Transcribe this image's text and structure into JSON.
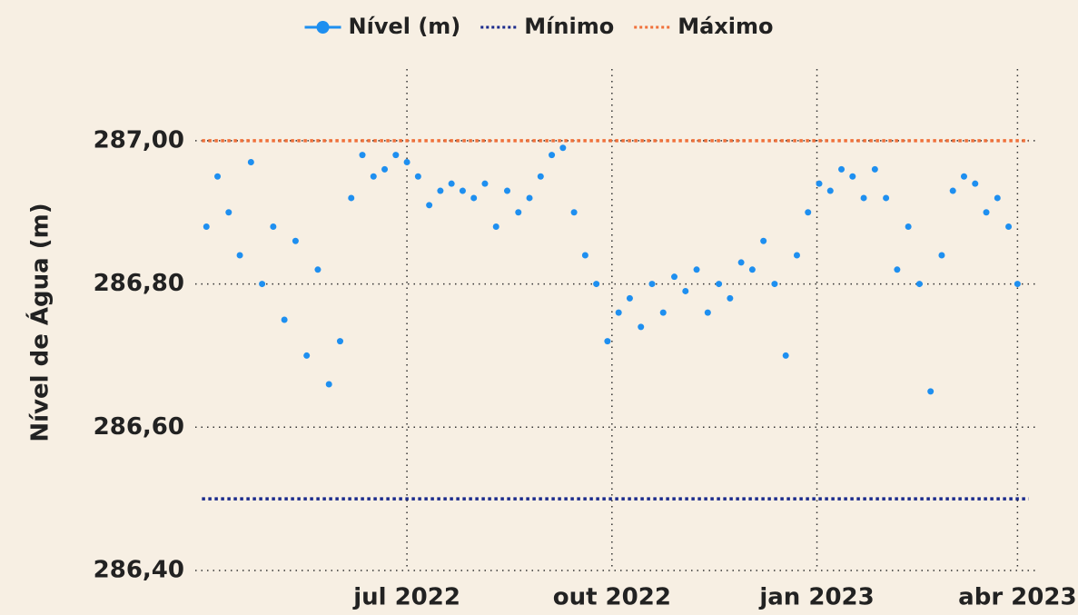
{
  "chart_data": {
    "type": "scatter",
    "y_label": "Nível de Água (m)",
    "xlim": [
      "2022-03-28",
      "2023-04-09"
    ],
    "xticks": [
      {
        "value": "2022-07-01",
        "label": "jul 2022"
      },
      {
        "value": "2022-10-01",
        "label": "out 2022"
      },
      {
        "value": "2023-01-01",
        "label": "jan 2023"
      },
      {
        "value": "2023-04-01",
        "label": "abr 2023"
      }
    ],
    "ylim": [
      286.4,
      287.1
    ],
    "yticks": [
      {
        "value": 286.4,
        "label": "286,40"
      },
      {
        "value": 286.6,
        "label": "286,60"
      },
      {
        "value": 286.8,
        "label": "286,80"
      },
      {
        "value": 287,
        "label": "287,00"
      }
    ],
    "grid": true,
    "legend": "top",
    "series": [
      {
        "name": "Nível (m)",
        "color": "#1e8ff0",
        "x": [
          "2022-04-02",
          "2022-04-07",
          "2022-04-12",
          "2022-04-17",
          "2022-04-22",
          "2022-04-27",
          "2022-05-02",
          "2022-05-07",
          "2022-05-12",
          "2022-05-17",
          "2022-05-22",
          "2022-05-27",
          "2022-06-01",
          "2022-06-06",
          "2022-06-11",
          "2022-06-16",
          "2022-06-21",
          "2022-06-26",
          "2022-07-01",
          "2022-07-06",
          "2022-07-11",
          "2022-07-16",
          "2022-07-21",
          "2022-07-26",
          "2022-07-31",
          "2022-08-05",
          "2022-08-10",
          "2022-08-15",
          "2022-08-20",
          "2022-08-25",
          "2022-08-30",
          "2022-09-04",
          "2022-09-09",
          "2022-09-14",
          "2022-09-19",
          "2022-09-24",
          "2022-09-29",
          "2022-10-04",
          "2022-10-09",
          "2022-10-14",
          "2022-10-19",
          "2022-10-24",
          "2022-10-29",
          "2022-11-03",
          "2022-11-08",
          "2022-11-13",
          "2022-11-18",
          "2022-11-23",
          "2022-11-28",
          "2022-12-03",
          "2022-12-08",
          "2022-12-13",
          "2022-12-18",
          "2022-12-23",
          "2022-12-28",
          "2023-01-02",
          "2023-01-07",
          "2023-01-12",
          "2023-01-17",
          "2023-01-22",
          "2023-01-27",
          "2023-02-01",
          "2023-02-06",
          "2023-02-11",
          "2023-02-16",
          "2023-02-21",
          "2023-02-26",
          "2023-03-03",
          "2023-03-08",
          "2023-03-13",
          "2023-03-18",
          "2023-03-23",
          "2023-03-28",
          "2023-04-01"
        ],
        "values": [
          286.88,
          286.95,
          286.9,
          286.84,
          286.97,
          286.8,
          286.88,
          286.75,
          286.86,
          286.7,
          286.82,
          286.66,
          286.72,
          286.92,
          286.98,
          286.95,
          286.96,
          286.98,
          286.97,
          286.95,
          286.91,
          286.93,
          286.94,
          286.93,
          286.92,
          286.94,
          286.88,
          286.93,
          286.9,
          286.92,
          286.95,
          286.98,
          286.99,
          286.9,
          286.84,
          286.8,
          286.72,
          286.76,
          286.78,
          286.74,
          286.8,
          286.76,
          286.81,
          286.79,
          286.82,
          286.76,
          286.8,
          286.78,
          286.83,
          286.82,
          286.86,
          286.8,
          286.7,
          286.84,
          286.9,
          286.94,
          286.93,
          286.96,
          286.95,
          286.92,
          286.96,
          286.92,
          286.82,
          286.88,
          286.8,
          286.65,
          286.84,
          286.93,
          286.95,
          286.94,
          286.9,
          286.92,
          286.88,
          286.8
        ]
      },
      {
        "name": "Mínimo",
        "color": "#1a2a8c",
        "x": [
          "2022-03-31",
          "2023-04-06"
        ],
        "values": [
          286.5,
          286.5
        ]
      },
      {
        "name": "Máximo",
        "color": "#f0703a",
        "x": [
          "2022-03-31",
          "2023-04-06"
        ],
        "values": [
          287,
          287
        ]
      }
    ]
  }
}
